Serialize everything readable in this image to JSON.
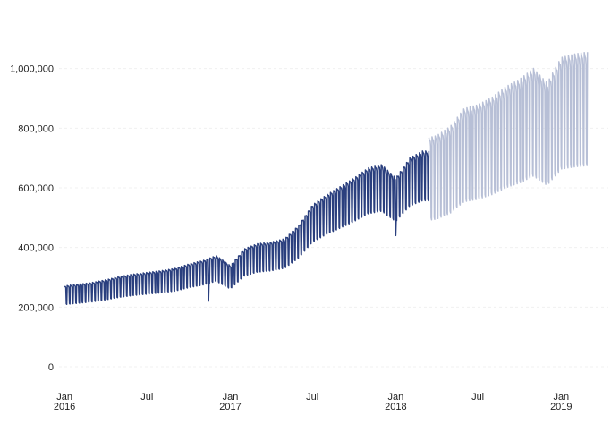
{
  "chart_data": {
    "type": "line",
    "title": "",
    "xlabel": "",
    "ylabel": "",
    "grid": true,
    "legend": "none",
    "ylim": [
      -60000,
      1200000
    ],
    "xlim": [
      "2015-12-20",
      "2019-04-15"
    ],
    "y_ticks": [
      {
        "value": 0,
        "label": "0"
      },
      {
        "value": 200000,
        "label": "200,000"
      },
      {
        "value": 400000,
        "label": "400,000"
      },
      {
        "value": 600000,
        "label": "600,000"
      },
      {
        "value": 800000,
        "label": "800,000"
      },
      {
        "value": 1000000,
        "label": "1,000,000"
      }
    ],
    "x_ticks": [
      {
        "date": "2016-01-01",
        "line1": "Jan",
        "line2": "2016"
      },
      {
        "date": "2016-07-01",
        "line1": "Jul",
        "line2": ""
      },
      {
        "date": "2017-01-01",
        "line1": "Jan",
        "line2": "2017"
      },
      {
        "date": "2017-07-01",
        "line1": "Jul",
        "line2": ""
      },
      {
        "date": "2018-01-01",
        "line1": "Jan",
        "line2": "2018"
      },
      {
        "date": "2018-07-01",
        "line1": "Jul",
        "line2": ""
      },
      {
        "date": "2019-01-01",
        "line1": "Jan",
        "line2": "2019"
      }
    ],
    "series": [
      {
        "kind": "actual",
        "color": "#2a3f7e",
        "weekly_amplitude": 0.13,
        "points": [
          [
            "2016-01-01",
            240000
          ],
          [
            "2016-02-01",
            245000
          ],
          [
            "2016-03-01",
            250000
          ],
          [
            "2016-04-01",
            258000
          ],
          [
            "2016-05-01",
            268000
          ],
          [
            "2016-06-01",
            275000
          ],
          [
            "2016-07-01",
            280000
          ],
          [
            "2016-08-01",
            285000
          ],
          [
            "2016-09-01",
            292000
          ],
          [
            "2016-10-01",
            305000
          ],
          [
            "2016-11-01",
            315000
          ],
          [
            "2016-12-01",
            330000
          ],
          [
            "2017-01-01",
            300000
          ],
          [
            "2017-02-01",
            350000
          ],
          [
            "2017-03-01",
            365000
          ],
          [
            "2017-04-01",
            370000
          ],
          [
            "2017-05-01",
            380000
          ],
          [
            "2017-06-01",
            420000
          ],
          [
            "2017-07-01",
            480000
          ],
          [
            "2017-08-01",
            510000
          ],
          [
            "2017-09-01",
            535000
          ],
          [
            "2017-10-01",
            560000
          ],
          [
            "2017-11-01",
            590000
          ],
          [
            "2017-12-01",
            600000
          ],
          [
            "2018-01-01",
            560000
          ],
          [
            "2018-02-01",
            620000
          ],
          [
            "2018-03-01",
            640000
          ],
          [
            "2018-03-15",
            640000
          ]
        ],
        "dips": [
          [
            "2016-11-14",
            220000
          ],
          [
            "2018-01-01",
            440000
          ]
        ]
      },
      {
        "kind": "forecast",
        "color": "#b7bfd6",
        "weekly_amplitude": 0.22,
        "points": [
          [
            "2018-03-15",
            630000
          ],
          [
            "2018-04-01",
            635000
          ],
          [
            "2018-05-01",
            660000
          ],
          [
            "2018-06-01",
            710000
          ],
          [
            "2018-07-01",
            720000
          ],
          [
            "2018-08-01",
            740000
          ],
          [
            "2018-09-01",
            770000
          ],
          [
            "2018-10-01",
            790000
          ],
          [
            "2018-11-01",
            820000
          ],
          [
            "2018-12-01",
            780000
          ],
          [
            "2019-01-01",
            850000
          ],
          [
            "2019-02-01",
            860000
          ],
          [
            "2019-02-28",
            865000
          ]
        ]
      }
    ]
  }
}
